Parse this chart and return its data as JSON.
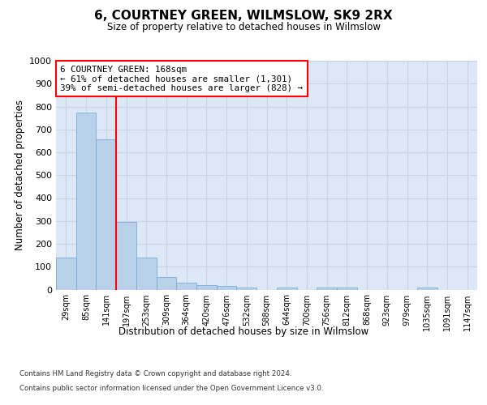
{
  "title": "6, COURTNEY GREEN, WILMSLOW, SK9 2RX",
  "subtitle": "Size of property relative to detached houses in Wilmslow",
  "xlabel": "Distribution of detached houses by size in Wilmslow",
  "ylabel": "Number of detached properties",
  "bar_color": "#b8d0ea",
  "bar_edge_color": "#7aadd4",
  "grid_color": "#c8d4e4",
  "background_color": "#dce8f5",
  "categories": [
    "29sqm",
    "85sqm",
    "141sqm",
    "197sqm",
    "253sqm",
    "309sqm",
    "364sqm",
    "420sqm",
    "476sqm",
    "532sqm",
    "588sqm",
    "644sqm",
    "700sqm",
    "756sqm",
    "812sqm",
    "868sqm",
    "923sqm",
    "979sqm",
    "1035sqm",
    "1091sqm",
    "1147sqm"
  ],
  "values": [
    140,
    775,
    655,
    295,
    140,
    55,
    30,
    20,
    15,
    8,
    0,
    10,
    0,
    10,
    8,
    0,
    0,
    0,
    10,
    0,
    0
  ],
  "ylim": [
    0,
    1000
  ],
  "yticks": [
    0,
    100,
    200,
    300,
    400,
    500,
    600,
    700,
    800,
    900,
    1000
  ],
  "property_line_x": 2.5,
  "property_name": "6 COURTNEY GREEN: 168sqm",
  "annotation_line1": "← 61% of detached houses are smaller (1,301)",
  "annotation_line2": "39% of semi-detached houses are larger (828) →",
  "footer_line1": "Contains HM Land Registry data © Crown copyright and database right 2024.",
  "footer_line2": "Contains public sector information licensed under the Open Government Licence v3.0."
}
